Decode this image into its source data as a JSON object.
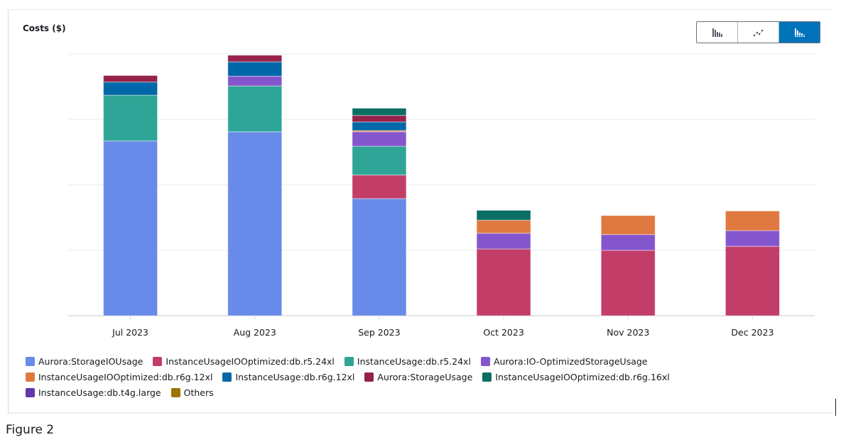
{
  "panel": {
    "title": "Costs ($)",
    "chart_type_toggle": [
      {
        "icon": "bar-chart-icon",
        "label": "Bar",
        "active": false
      },
      {
        "icon": "line-chart-icon",
        "label": "Line",
        "active": false
      },
      {
        "icon": "stacked-bar-chart-icon",
        "label": "Stacked",
        "active": true
      }
    ]
  },
  "caption": "Figure 2",
  "chart_data": {
    "type": "bar",
    "stacked": true,
    "title": "Costs ($)",
    "xlabel": "",
    "ylabel": "",
    "y_tick_labels_visible": false,
    "units_note": "relative units; one gridline interval = 100",
    "ylim": [
      0,
      400
    ],
    "grid": true,
    "legend_position": "bottom",
    "categories": [
      "Jul 2023",
      "Aug 2023",
      "Sep 2023",
      "Oct 2023",
      "Nov 2023",
      "Dec 2023"
    ],
    "series": [
      {
        "name": "Aurora:StorageIOUsage",
        "color": "#688ae8",
        "values": [
          267,
          281,
          179,
          0,
          0,
          0
        ]
      },
      {
        "name": "InstanceUsageIOOptimized:db.r5.24xl",
        "color": "#c33d69",
        "values": [
          0,
          0,
          36,
          102,
          100,
          106
        ]
      },
      {
        "name": "InstanceUsage:db.r5.24xl",
        "color": "#2ea597",
        "values": [
          70,
          70,
          44,
          0,
          0,
          0
        ]
      },
      {
        "name": "Aurora:IO-OptimizedStorageUsage",
        "color": "#8456ce",
        "values": [
          0,
          15,
          22,
          24,
          24,
          24
        ]
      },
      {
        "name": "InstanceUsageIOOptimized:db.r6g.12xl",
        "color": "#e07941",
        "values": [
          0,
          0,
          2,
          20,
          29,
          30
        ]
      },
      {
        "name": "InstanceUsage:db.r6g.12xl",
        "color": "#0067a8",
        "values": [
          20,
          22,
          13,
          0,
          0,
          0
        ]
      },
      {
        "name": "Aurora:StorageUsage",
        "color": "#962249",
        "values": [
          10,
          10,
          10,
          0,
          0,
          0
        ]
      },
      {
        "name": "InstanceUsageIOOptimized:db.r6g.16xl",
        "color": "#096f64",
        "values": [
          0,
          0,
          11,
          15,
          0,
          0
        ]
      },
      {
        "name": "InstanceUsage:db.t4g.large",
        "color": "#6237a7",
        "values": [
          0,
          0,
          0,
          0,
          0,
          0
        ]
      },
      {
        "name": "Others",
        "color": "#9c7400",
        "values": [
          0,
          0,
          0,
          0,
          0,
          0
        ]
      }
    ],
    "legend_rows": [
      [
        0,
        1,
        2,
        3
      ],
      [
        4,
        5,
        6,
        7
      ],
      [
        8,
        9
      ]
    ]
  }
}
